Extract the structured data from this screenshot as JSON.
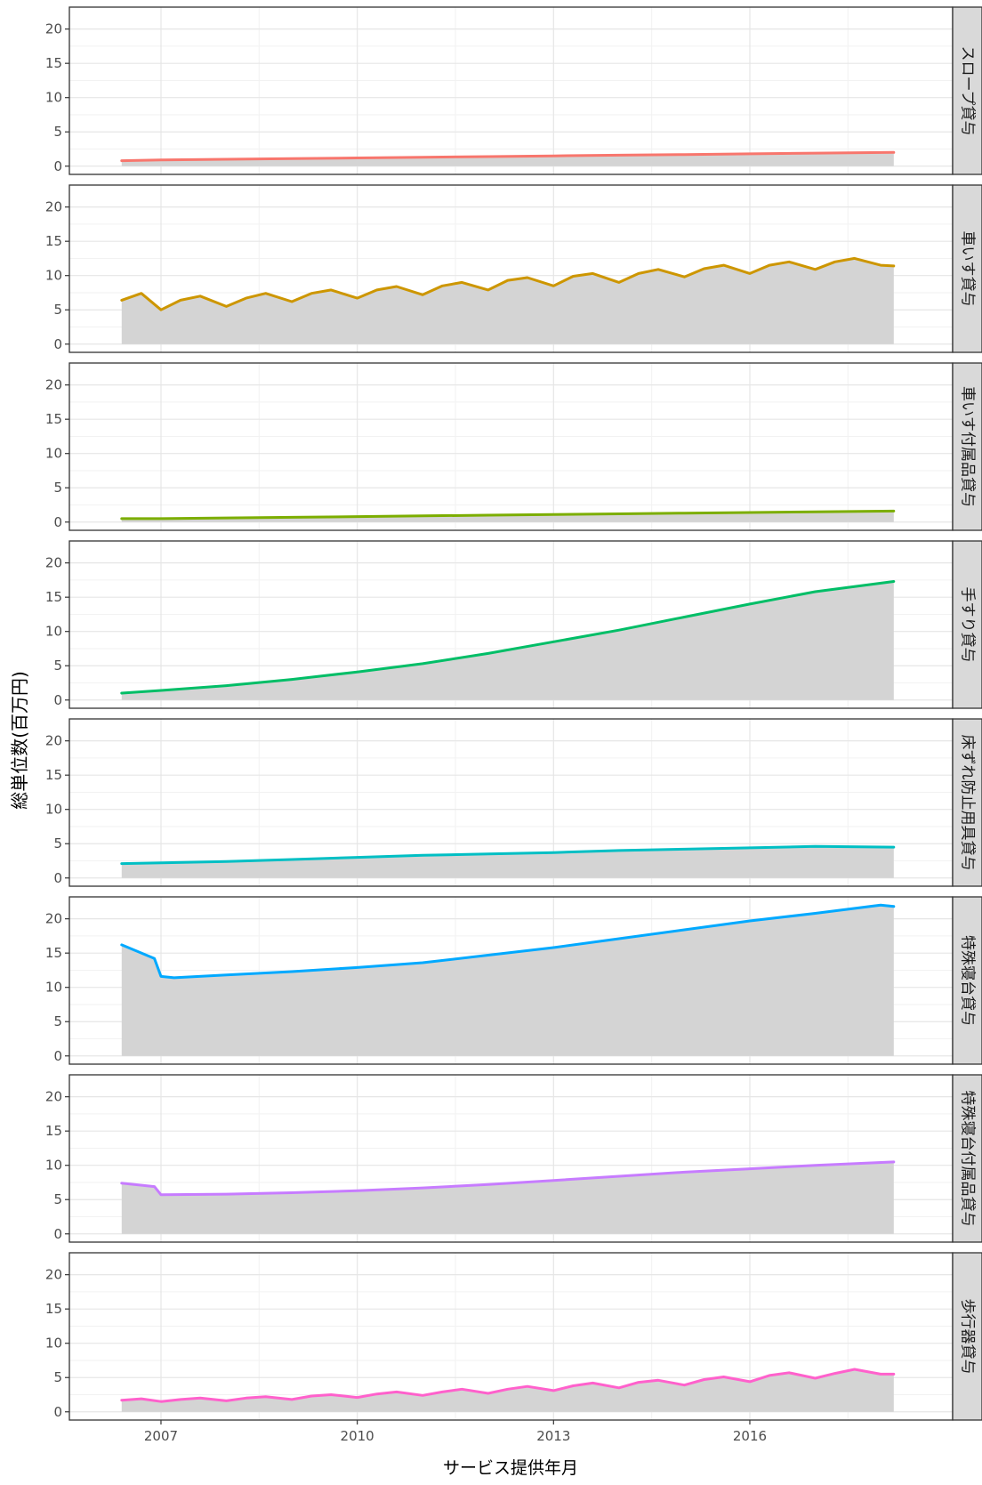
{
  "chart_data": {
    "type": "area",
    "layout": "faceted-vertical",
    "xlabel": "サービス提供年月",
    "ylabel": "総単位数(百万円)",
    "x_range": [
      2005.6,
      2019.1
    ],
    "x_ticks": [
      2007,
      2010,
      2013,
      2016
    ],
    "x_tick_labels": [
      "2007",
      "2010",
      "2013",
      "2016"
    ],
    "y_range": [
      -1.2,
      23.2
    ],
    "y_ticks": [
      0,
      5,
      10,
      15,
      20
    ],
    "y_tick_labels": [
      "0",
      "5",
      "10",
      "15",
      "20"
    ],
    "grid": true,
    "legend": "none",
    "background_area_color": "#d4d4d4",
    "panels": [
      {
        "label": "スロープ貸与",
        "color": "#F8766D",
        "x": [
          2006.4,
          2007.0,
          2008.0,
          2009.0,
          2010.0,
          2011.0,
          2012.0,
          2013.0,
          2014.0,
          2015.0,
          2016.0,
          2017.0,
          2018.2
        ],
        "values": [
          0.8,
          0.9,
          1.0,
          1.1,
          1.2,
          1.3,
          1.4,
          1.5,
          1.6,
          1.7,
          1.8,
          1.9,
          2.0
        ]
      },
      {
        "label": "車いす貸与",
        "color": "#CD9600",
        "x": [
          2006.4,
          2006.7,
          2007.0,
          2007.3,
          2007.6,
          2008.0,
          2008.3,
          2008.6,
          2009.0,
          2009.3,
          2009.6,
          2010.0,
          2010.3,
          2010.6,
          2011.0,
          2011.3,
          2011.6,
          2012.0,
          2012.3,
          2012.6,
          2013.0,
          2013.3,
          2013.6,
          2014.0,
          2014.3,
          2014.6,
          2015.0,
          2015.3,
          2015.6,
          2016.0,
          2016.3,
          2016.6,
          2017.0,
          2017.3,
          2017.6,
          2018.0,
          2018.2
        ],
        "values": [
          6.4,
          7.4,
          5.0,
          6.4,
          7.0,
          5.5,
          6.7,
          7.4,
          6.2,
          7.4,
          7.9,
          6.7,
          7.9,
          8.4,
          7.2,
          8.5,
          9.0,
          7.9,
          9.3,
          9.7,
          8.5,
          9.9,
          10.3,
          9.0,
          10.3,
          10.9,
          9.8,
          11.0,
          11.5,
          10.3,
          11.5,
          12.0,
          10.9,
          12.0,
          12.5,
          11.5,
          11.4
        ]
      },
      {
        "label": "車いす付属品貸与",
        "color": "#7CAE00",
        "x": [
          2006.4,
          2007.0,
          2008.0,
          2009.0,
          2010.0,
          2011.0,
          2012.0,
          2013.0,
          2014.0,
          2015.0,
          2016.0,
          2017.0,
          2018.2
        ],
        "values": [
          0.5,
          0.5,
          0.6,
          0.7,
          0.8,
          0.9,
          1.0,
          1.1,
          1.2,
          1.3,
          1.4,
          1.5,
          1.6
        ]
      },
      {
        "label": "手すり貸与",
        "color": "#00BE67",
        "x": [
          2006.4,
          2007.0,
          2008.0,
          2009.0,
          2010.0,
          2011.0,
          2012.0,
          2013.0,
          2014.0,
          2015.0,
          2016.0,
          2017.0,
          2018.2
        ],
        "values": [
          1.0,
          1.4,
          2.1,
          3.0,
          4.1,
          5.3,
          6.8,
          8.5,
          10.2,
          12.1,
          14.0,
          15.8,
          17.3
        ]
      },
      {
        "label": "床ずれ防止用具貸与",
        "color": "#00BFC4",
        "x": [
          2006.4,
          2007.0,
          2008.0,
          2009.0,
          2010.0,
          2011.0,
          2012.0,
          2013.0,
          2014.0,
          2015.0,
          2016.0,
          2017.0,
          2018.2
        ],
        "values": [
          2.1,
          2.2,
          2.4,
          2.7,
          3.0,
          3.3,
          3.5,
          3.7,
          4.0,
          4.2,
          4.4,
          4.6,
          4.5
        ]
      },
      {
        "label": "特殊寝台貸与",
        "color": "#00A9FF",
        "x": [
          2006.4,
          2006.9,
          2007.0,
          2007.2,
          2008.0,
          2009.0,
          2010.0,
          2011.0,
          2012.0,
          2013.0,
          2014.0,
          2015.0,
          2016.0,
          2017.0,
          2018.0,
          2018.2
        ],
        "values": [
          16.2,
          14.2,
          11.6,
          11.4,
          11.8,
          12.3,
          12.9,
          13.6,
          14.7,
          15.8,
          17.1,
          18.4,
          19.7,
          20.8,
          22.0,
          21.8
        ]
      },
      {
        "label": "特殊寝台付属品貸与",
        "color": "#C77CFF",
        "x": [
          2006.4,
          2006.9,
          2007.0,
          2008.0,
          2009.0,
          2010.0,
          2011.0,
          2012.0,
          2013.0,
          2014.0,
          2015.0,
          2016.0,
          2017.0,
          2018.2
        ],
        "values": [
          7.4,
          6.9,
          5.7,
          5.8,
          6.0,
          6.3,
          6.7,
          7.2,
          7.8,
          8.4,
          9.0,
          9.5,
          10.0,
          10.5
        ]
      },
      {
        "label": "歩行器貸与",
        "color": "#FF61CC",
        "x": [
          2006.4,
          2006.7,
          2007.0,
          2007.3,
          2007.6,
          2008.0,
          2008.3,
          2008.6,
          2009.0,
          2009.3,
          2009.6,
          2010.0,
          2010.3,
          2010.6,
          2011.0,
          2011.3,
          2011.6,
          2012.0,
          2012.3,
          2012.6,
          2013.0,
          2013.3,
          2013.6,
          2014.0,
          2014.3,
          2014.6,
          2015.0,
          2015.3,
          2015.6,
          2016.0,
          2016.3,
          2016.6,
          2017.0,
          2017.3,
          2017.6,
          2018.0,
          2018.2
        ],
        "values": [
          1.7,
          1.9,
          1.5,
          1.8,
          2.0,
          1.6,
          2.0,
          2.2,
          1.8,
          2.3,
          2.5,
          2.1,
          2.6,
          2.9,
          2.4,
          2.9,
          3.3,
          2.7,
          3.3,
          3.7,
          3.1,
          3.8,
          4.2,
          3.5,
          4.3,
          4.6,
          3.9,
          4.7,
          5.1,
          4.4,
          5.3,
          5.7,
          4.9,
          5.6,
          6.2,
          5.5,
          5.5
        ]
      }
    ]
  }
}
